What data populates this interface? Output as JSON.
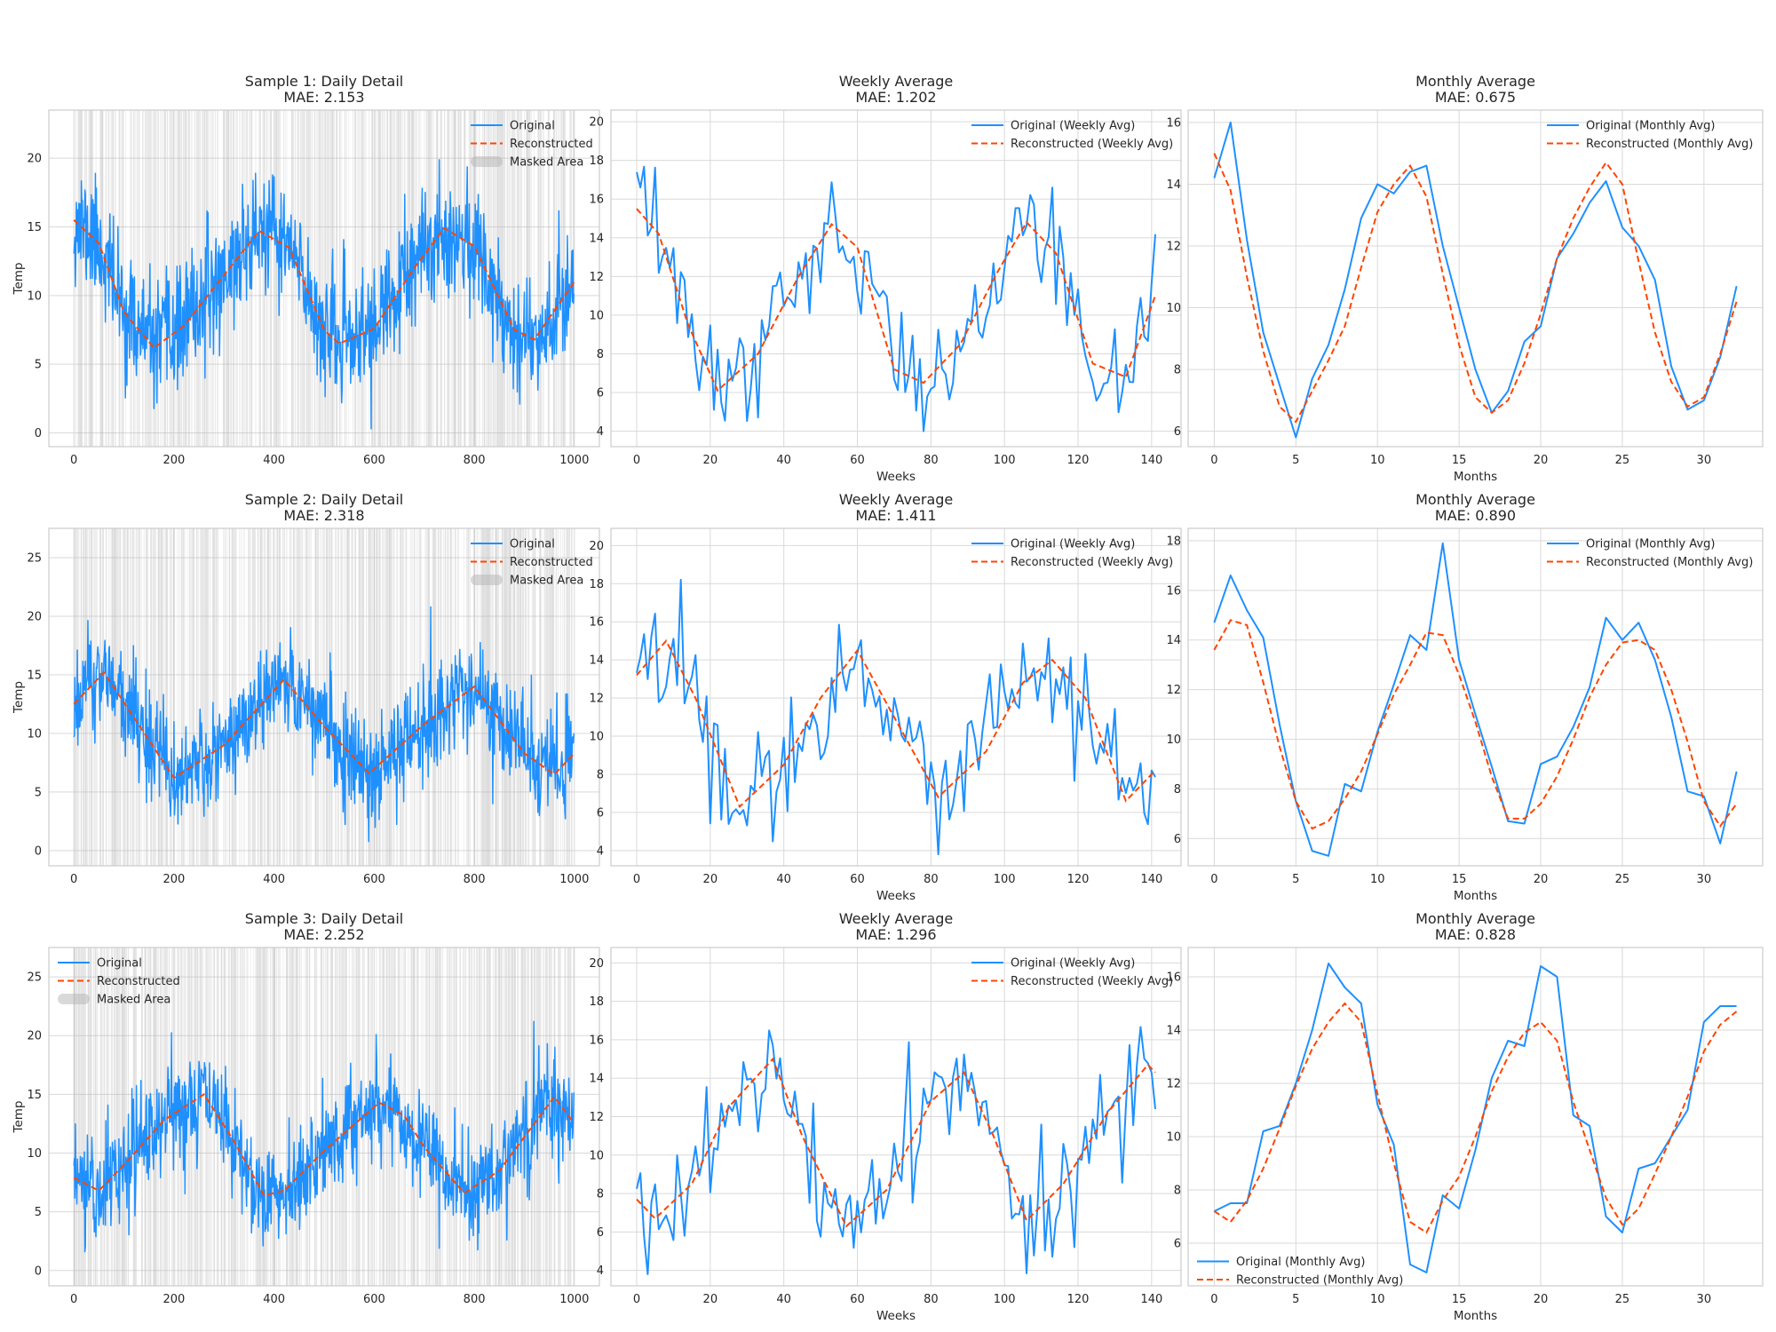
{
  "colors": {
    "original": "#1e90ff",
    "reconstructed": "#ff4500",
    "masked": "#b4b4b4",
    "grid": "#d9d9d9",
    "frame": "#cccccc",
    "background": "#ffffff"
  },
  "chart_data": [
    {
      "type": "line",
      "panel": "daily",
      "seed": 11,
      "title": "Sample 1: Daily Detail",
      "subtitle": "MAE: 2.153",
      "xlabel": "",
      "ylabel": "Temp",
      "xlim": [
        -50,
        1050
      ],
      "ylim": [
        -1,
        23.5
      ],
      "xticks": [
        0,
        200,
        400,
        600,
        800,
        1000
      ],
      "yticks": [
        0,
        5,
        10,
        15,
        20
      ],
      "legend": "top-right",
      "series": [
        {
          "name": "Original",
          "style": "solid",
          "n": 1000,
          "mean": 10.6,
          "amplitude": 4.1,
          "period": 365,
          "peak_day": 370,
          "noise_sd": 2.15,
          "range": [
            0.3,
            22.5
          ]
        },
        {
          "name": "Reconstructed",
          "style": "dashed",
          "x": [
            0,
            50,
            100,
            160,
            220,
            300,
            370,
            430,
            500,
            530,
            600,
            680,
            740,
            800,
            880,
            920,
            1000
          ],
          "y": [
            15.5,
            13.8,
            8.8,
            6.2,
            7.8,
            11.5,
            14.7,
            13.5,
            7.5,
            6.5,
            7.6,
            12.0,
            14.9,
            13.6,
            7.5,
            6.8,
            11.0
          ]
        },
        {
          "name": "Masked Area",
          "kind": "bands",
          "fraction": 0.5
        }
      ]
    },
    {
      "type": "line",
      "panel": "weekly",
      "seed": 12,
      "title": "Weekly Average",
      "subtitle": "MAE: 1.202",
      "xlabel": "Weeks",
      "ylabel": "",
      "xlim": [
        -7,
        148
      ],
      "ylim": [
        3.2,
        20.6
      ],
      "xticks": [
        0,
        20,
        40,
        60,
        80,
        100,
        120,
        140
      ],
      "yticks": [
        4,
        6,
        8,
        10,
        12,
        14,
        16,
        18,
        20
      ],
      "legend": "top-right",
      "series": [
        {
          "name": "Original (Weekly Avg)",
          "style": "solid",
          "n": 142,
          "noise_sd": 1.35,
          "range": [
            4.0,
            19.8
          ]
        },
        {
          "name": "Reconstructed (Weekly Avg)",
          "style": "dashed",
          "x": [
            0,
            6,
            14,
            22,
            33,
            44,
            53,
            60,
            70,
            78,
            88,
            98,
            106,
            114,
            124,
            133,
            141
          ],
          "y": [
            15.5,
            14.2,
            9.5,
            6.1,
            8.0,
            12.0,
            14.7,
            13.5,
            7.2,
            6.5,
            8.5,
            12.2,
            14.8,
            13.2,
            7.5,
            6.8,
            11.0
          ]
        }
      ]
    },
    {
      "type": "line",
      "panel": "monthly",
      "title": "Monthly Average",
      "subtitle": "MAE: 0.675",
      "xlabel": "Months",
      "ylabel": "",
      "xlim": [
        -1.6,
        33.6
      ],
      "ylim": [
        5.5,
        16.4
      ],
      "xticks": [
        0,
        5,
        10,
        15,
        20,
        25,
        30
      ],
      "yticks": [
        6,
        8,
        10,
        12,
        14,
        16
      ],
      "legend": "top-right",
      "series": [
        {
          "name": "Original (Monthly Avg)",
          "style": "solid",
          "x": [
            0,
            1,
            2,
            3,
            4,
            5,
            6,
            7,
            8,
            9,
            10,
            11,
            12,
            13,
            14,
            15,
            16,
            17,
            18,
            19,
            20,
            21,
            22,
            23,
            24,
            25,
            26,
            27,
            28,
            29,
            30,
            31,
            32
          ],
          "y": [
            14.2,
            16.0,
            12.2,
            9.2,
            7.5,
            5.8,
            7.7,
            8.8,
            10.6,
            12.9,
            14.0,
            13.7,
            14.4,
            14.6,
            12.0,
            10.0,
            8.0,
            6.6,
            7.3,
            8.9,
            9.4,
            11.6,
            12.4,
            13.4,
            14.1,
            12.6,
            12.0,
            10.9,
            8.1,
            6.7,
            7.0,
            8.4,
            10.7
          ]
        },
        {
          "name": "Reconstructed (Monthly Avg)",
          "style": "dashed",
          "x": [
            0,
            1,
            2,
            3,
            4,
            5,
            6,
            7,
            8,
            9,
            10,
            11,
            12,
            13,
            14,
            15,
            16,
            17,
            18,
            19,
            20,
            21,
            22,
            23,
            24,
            25,
            26,
            27,
            28,
            29,
            30,
            31,
            32
          ],
          "y": [
            15.0,
            13.8,
            11.0,
            8.6,
            6.8,
            6.3,
            7.3,
            8.3,
            9.4,
            11.3,
            13.1,
            14.0,
            14.6,
            13.6,
            11.1,
            8.8,
            7.1,
            6.6,
            7.0,
            8.2,
            9.8,
            11.6,
            12.9,
            13.9,
            14.7,
            14.0,
            11.5,
            9.2,
            7.6,
            6.8,
            7.1,
            8.5,
            10.2
          ]
        }
      ]
    },
    {
      "type": "line",
      "panel": "daily",
      "seed": 21,
      "title": "Sample 2: Daily Detail",
      "subtitle": "MAE: 2.318",
      "xlabel": "",
      "ylabel": "Temp",
      "xlim": [
        -50,
        1050
      ],
      "ylim": [
        -1.3,
        27.5
      ],
      "xticks": [
        0,
        200,
        400,
        600,
        800,
        1000
      ],
      "yticks": [
        0,
        5,
        10,
        15,
        20,
        25
      ],
      "legend": "top-right",
      "series": [
        {
          "name": "Original",
          "style": "solid",
          "n": 1000,
          "mean": 10.5,
          "amplitude": 4.4,
          "period": 365,
          "peak_day": 420,
          "noise_sd": 2.3,
          "range": [
            0.0,
            26.5
          ]
        },
        {
          "name": "Reconstructed",
          "style": "dashed",
          "x": [
            0,
            60,
            110,
            200,
            300,
            420,
            500,
            590,
            700,
            800,
            900,
            960,
            1000
          ],
          "y": [
            12.5,
            15.2,
            12.0,
            6.2,
            9.0,
            14.6,
            10.6,
            6.6,
            10.8,
            14.0,
            8.3,
            6.5,
            8.3
          ]
        },
        {
          "name": "Masked Area",
          "kind": "bands",
          "fraction": 0.5
        }
      ]
    },
    {
      "type": "line",
      "panel": "weekly",
      "seed": 22,
      "title": "Weekly Average",
      "subtitle": "MAE: 1.411",
      "xlabel": "Weeks",
      "ylabel": "",
      "xlim": [
        -7,
        148
      ],
      "ylim": [
        3.2,
        20.9
      ],
      "xticks": [
        0,
        20,
        40,
        60,
        80,
        100,
        120,
        140
      ],
      "yticks": [
        4,
        6,
        8,
        10,
        12,
        14,
        16,
        18,
        20
      ],
      "legend": "top-right",
      "series": [
        {
          "name": "Original (Weekly Avg)",
          "style": "solid",
          "n": 142,
          "noise_sd": 1.5,
          "range": [
            3.8,
            20.0
          ]
        },
        {
          "name": "Reconstructed (Weekly Avg)",
          "style": "dashed",
          "x": [
            0,
            8,
            16,
            28,
            40,
            50,
            60,
            70,
            82,
            95,
            105,
            113,
            122,
            133,
            141
          ],
          "y": [
            13.2,
            15.0,
            12.0,
            6.3,
            8.5,
            12.0,
            14.5,
            11.0,
            6.8,
            9.2,
            12.8,
            14.0,
            12.0,
            6.6,
            8.2
          ]
        }
      ]
    },
    {
      "type": "line",
      "panel": "monthly",
      "title": "Monthly Average",
      "subtitle": "MAE: 0.890",
      "xlabel": "Months",
      "ylabel": "",
      "xlim": [
        -1.6,
        33.6
      ],
      "ylim": [
        4.9,
        18.5
      ],
      "xticks": [
        0,
        5,
        10,
        15,
        20,
        25,
        30
      ],
      "yticks": [
        6,
        8,
        10,
        12,
        14,
        16,
        18
      ],
      "legend": "top-right",
      "series": [
        {
          "name": "Original (Monthly Avg)",
          "style": "solid",
          "x": [
            0,
            1,
            2,
            3,
            4,
            5,
            6,
            7,
            8,
            9,
            10,
            11,
            12,
            13,
            14,
            15,
            16,
            17,
            18,
            19,
            20,
            21,
            22,
            23,
            24,
            25,
            26,
            27,
            28,
            29,
            30,
            31,
            32
          ],
          "y": [
            14.7,
            16.6,
            15.2,
            14.1,
            10.6,
            7.5,
            5.5,
            5.3,
            8.2,
            7.9,
            10.3,
            12.2,
            14.2,
            13.6,
            17.9,
            13.2,
            11.0,
            8.9,
            6.7,
            6.6,
            9.0,
            9.3,
            10.5,
            12.1,
            14.9,
            14.0,
            14.7,
            13.2,
            10.9,
            7.9,
            7.7,
            5.8,
            8.7
          ]
        },
        {
          "name": "Reconstructed (Monthly Avg)",
          "style": "dashed",
          "x": [
            0,
            1,
            2,
            3,
            4,
            5,
            6,
            7,
            8,
            9,
            10,
            11,
            12,
            13,
            14,
            15,
            16,
            17,
            18,
            19,
            20,
            21,
            22,
            23,
            24,
            25,
            26,
            27,
            28,
            29,
            30,
            31,
            32
          ],
          "y": [
            13.6,
            14.8,
            14.6,
            12.3,
            9.7,
            7.5,
            6.4,
            6.7,
            7.6,
            8.7,
            10.2,
            11.8,
            13.0,
            14.3,
            14.2,
            12.6,
            10.7,
            8.5,
            6.8,
            6.8,
            7.4,
            8.5,
            10.0,
            11.7,
            13.0,
            13.9,
            14.0,
            13.6,
            12.0,
            9.9,
            7.5,
            6.5,
            7.4
          ]
        }
      ]
    },
    {
      "type": "line",
      "panel": "daily",
      "seed": 31,
      "title": "Sample 3: Daily Detail",
      "subtitle": "MAE: 2.252",
      "xlabel": "",
      "ylabel": "Temp",
      "xlim": [
        -50,
        1050
      ],
      "ylim": [
        -1.3,
        27.5
      ],
      "xticks": [
        0,
        200,
        400,
        600,
        800,
        1000
      ],
      "yticks": [
        0,
        5,
        10,
        15,
        20,
        25
      ],
      "legend": "top-left",
      "series": [
        {
          "name": "Original",
          "style": "solid",
          "n": 1000,
          "mean": 10.6,
          "amplitude": 4.3,
          "period": 350,
          "peak_day": 260,
          "noise_sd": 2.25,
          "range": [
            0.0,
            26.3
          ]
        },
        {
          "name": "Reconstructed",
          "style": "dashed",
          "x": [
            0,
            50,
            100,
            180,
            260,
            320,
            380,
            420,
            500,
            610,
            660,
            700,
            780,
            850,
            960,
            1000
          ],
          "y": [
            7.9,
            6.8,
            9.0,
            12.8,
            15.0,
            11.0,
            6.4,
            6.8,
            10.2,
            14.3,
            13.2,
            10.5,
            6.6,
            8.5,
            14.8,
            12.5
          ]
        },
        {
          "name": "Masked Area",
          "kind": "bands",
          "fraction": 0.5
        }
      ]
    },
    {
      "type": "line",
      "panel": "weekly",
      "seed": 32,
      "title": "Weekly Average",
      "subtitle": "MAE: 1.296",
      "xlabel": "Weeks",
      "ylabel": "",
      "xlim": [
        -7,
        148
      ],
      "ylim": [
        3.2,
        20.8
      ],
      "xticks": [
        0,
        20,
        40,
        60,
        80,
        100,
        120,
        140
      ],
      "yticks": [
        4,
        6,
        8,
        10,
        12,
        14,
        16,
        18,
        20
      ],
      "legend": "top-right",
      "series": [
        {
          "name": "Original (Weekly Avg)",
          "style": "solid",
          "n": 142,
          "noise_sd": 1.45,
          "range": [
            3.8,
            20.0
          ]
        },
        {
          "name": "Reconstructed (Weekly Avg)",
          "style": "dashed",
          "x": [
            0,
            5,
            15,
            25,
            37,
            45,
            57,
            68,
            80,
            89,
            97,
            106,
            116,
            128,
            139,
            141
          ],
          "y": [
            7.7,
            6.7,
            8.5,
            12.5,
            15.0,
            11.0,
            6.3,
            8.2,
            12.8,
            14.3,
            11.0,
            6.6,
            8.5,
            12.2,
            14.7,
            14.3
          ]
        }
      ]
    },
    {
      "type": "line",
      "panel": "monthly",
      "title": "Monthly Average",
      "subtitle": "MAE: 0.828",
      "xlabel": "Months",
      "ylabel": "",
      "xlim": [
        -1.6,
        33.6
      ],
      "ylim": [
        4.4,
        17.1
      ],
      "xticks": [
        0,
        5,
        10,
        15,
        20,
        25,
        30
      ],
      "yticks": [
        6,
        8,
        10,
        12,
        14,
        16
      ],
      "legend": "bottom-left",
      "series": [
        {
          "name": "Original (Monthly Avg)",
          "style": "solid",
          "x": [
            0,
            1,
            2,
            3,
            4,
            5,
            6,
            7,
            8,
            9,
            10,
            11,
            12,
            13,
            14,
            15,
            16,
            17,
            18,
            19,
            20,
            21,
            22,
            23,
            24,
            25,
            26,
            27,
            28,
            29,
            30,
            31,
            32
          ],
          "y": [
            7.2,
            7.5,
            7.5,
            10.2,
            10.4,
            12.0,
            14.0,
            16.5,
            15.6,
            15.0,
            11.2,
            9.7,
            5.2,
            4.9,
            7.8,
            7.3,
            9.5,
            12.2,
            13.6,
            13.4,
            16.4,
            16.0,
            10.8,
            10.4,
            7.0,
            6.4,
            8.8,
            9.0,
            10.0,
            11.0,
            14.3,
            14.9,
            14.9
          ]
        },
        {
          "name": "Reconstructed (Monthly Avg)",
          "style": "dashed",
          "x": [
            0,
            1,
            2,
            3,
            4,
            5,
            6,
            7,
            8,
            9,
            10,
            11,
            12,
            13,
            14,
            15,
            16,
            17,
            18,
            19,
            20,
            21,
            22,
            23,
            24,
            25,
            26,
            27,
            28,
            29,
            30,
            31,
            32
          ],
          "y": [
            7.2,
            6.8,
            7.6,
            8.8,
            10.3,
            11.9,
            13.3,
            14.3,
            15.0,
            14.3,
            11.6,
            9.0,
            6.8,
            6.4,
            7.6,
            8.5,
            10.0,
            11.7,
            13.0,
            13.9,
            14.3,
            13.6,
            11.3,
            9.5,
            7.7,
            6.7,
            7.3,
            8.6,
            10.0,
            11.5,
            13.2,
            14.2,
            14.7
          ]
        }
      ]
    }
  ]
}
